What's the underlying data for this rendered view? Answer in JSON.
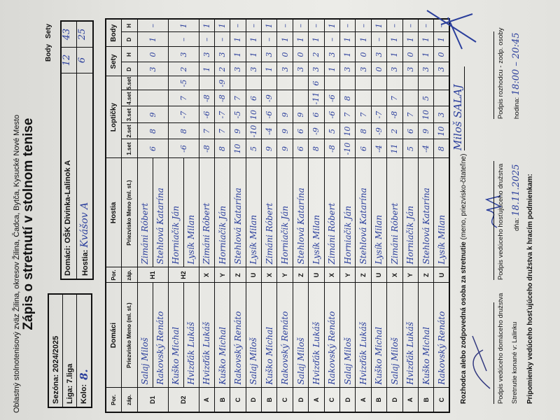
{
  "header": {
    "federation": "Oblastný  stolnotenisový zväz  Žilina, okresov Žilina, Čadca, Bytča, Kysucké Nové Mesto",
    "title": "Zápis o stretnutí v stolnom tenise",
    "season_label": "Sezóna: 2024/2025",
    "league_label": "Liga: 7.liga",
    "round_label": "Kolo:",
    "round_value": "8.",
    "home_label": "Domáci: OŠK Divinka-Lalinok A",
    "guest_label": "Hostia:",
    "guest_value": "Kvášov A"
  },
  "totals": {
    "body_label": "Body",
    "sety_label": "Sety",
    "home_body": "12",
    "home_sety": "43",
    "guest_body": "6",
    "guest_sety": "25"
  },
  "table_head": {
    "por": "Por.",
    "zap": "záp.",
    "home": "Domáci",
    "guest": "Hostia",
    "name_col": "Priezvisko Meno  (ml. st.)",
    "balls": "Loptičky",
    "sets_cols": [
      "1.set",
      "2.set",
      "3.set",
      "4.set",
      "5.set"
    ],
    "sety": "Sety",
    "body": "Body",
    "d": "D",
    "h": "H"
  },
  "doubles": [
    {
      "home_pos": "D1",
      "home": [
        "Salaj Miloš",
        "Rakovský Renáto"
      ],
      "guest_pos": "H1",
      "guest": [
        "Zimáni Róbert",
        "Stehlová Katarína"
      ],
      "sets": [
        "6",
        "8",
        "9",
        "",
        ""
      ],
      "sety": [
        "3",
        "0"
      ],
      "body": [
        "1",
        "–"
      ]
    },
    {
      "home_pos": "D2",
      "home": [
        "Kuško Michal",
        "Hvizďák Lukáš"
      ],
      "guest_pos": "H2",
      "guest": [
        "Horniačik Ján",
        "Lysík Milan"
      ],
      "sets": [
        "-6",
        "8",
        "-7",
        "7",
        "-5"
      ],
      "sety": [
        "2",
        "3"
      ],
      "body": [
        "–",
        "1"
      ]
    }
  ],
  "singles": [
    {
      "home_pos": "A",
      "home": "Hvizďák Lukáš",
      "guest_pos": "X",
      "guest": "Zimáni Róbert",
      "sets": [
        "-8",
        "7",
        "-6",
        "-8",
        ""
      ],
      "sety": [
        "1",
        "3"
      ],
      "body": [
        "–",
        "1"
      ]
    },
    {
      "home_pos": "B",
      "home": "Kuško Michal",
      "guest_pos": "Y",
      "guest": "Horniačik Ján",
      "sets": [
        "8",
        "7",
        "-7",
        "-8",
        "-9"
      ],
      "sety": [
        "2",
        "3"
      ],
      "body": [
        "–",
        "1"
      ]
    },
    {
      "home_pos": "C",
      "home": "Rakovský Renáto",
      "guest_pos": "Z",
      "guest": "Stehlová Katarína",
      "sets": [
        "10",
        "9",
        "-5",
        "7",
        ""
      ],
      "sety": [
        "3",
        "1"
      ],
      "body": [
        "1",
        "–"
      ]
    },
    {
      "home_pos": "D",
      "home": "Salaj Miloš",
      "guest_pos": "U",
      "guest": "Lysík Milan",
      "sets": [
        "5",
        "-10",
        "10",
        "6",
        ""
      ],
      "sety": [
        "3",
        "1"
      ],
      "body": [
        "1",
        "–"
      ]
    },
    {
      "home_pos": "B",
      "home": "Kuško Michal",
      "guest_pos": "X",
      "guest": "Zimáni Róbert",
      "sets": [
        "9",
        "-4",
        "-6",
        "-9",
        ""
      ],
      "sety": [
        "1",
        "3"
      ],
      "body": [
        "–",
        "1"
      ]
    },
    {
      "home_pos": "C",
      "home": "Rakovský Renáto",
      "guest_pos": "Y",
      "guest": "Horniačik Ján",
      "sets": [
        "9",
        "9",
        "9",
        "",
        ""
      ],
      "sety": [
        "3",
        "0"
      ],
      "body": [
        "1",
        "–"
      ]
    },
    {
      "home_pos": "D",
      "home": "Salaj Miloš",
      "guest_pos": "Z",
      "guest": "Stehlová Katarína",
      "sets": [
        "6",
        "6",
        "9",
        "",
        ""
      ],
      "sety": [
        "3",
        "0"
      ],
      "body": [
        "1",
        "–"
      ]
    },
    {
      "home_pos": "A",
      "home": "Hvizďák Lukáš",
      "guest_pos": "U",
      "guest": "Lysík Milan",
      "sets": [
        "8",
        "-9",
        "6",
        "-11",
        "6"
      ],
      "sety": [
        "3",
        "2"
      ],
      "body": [
        "1",
        "–"
      ]
    },
    {
      "home_pos": "C",
      "home": "Rakovský Renáto",
      "guest_pos": "X",
      "guest": "Zimáni Róbert",
      "sets": [
        "-8",
        "5",
        "-6",
        "-6",
        ""
      ],
      "sety": [
        "1",
        "3"
      ],
      "body": [
        "–",
        "1"
      ]
    },
    {
      "home_pos": "D",
      "home": "Salaj Miloš",
      "guest_pos": "Y",
      "guest": "Horniačik Ján",
      "sets": [
        "-10",
        "10",
        "7",
        "8",
        ""
      ],
      "sety": [
        "3",
        "1"
      ],
      "body": [
        "1",
        "–"
      ]
    },
    {
      "home_pos": "A",
      "home": "Hvizďák Lukáš",
      "guest_pos": "Z",
      "guest": "Stehlová Katarína",
      "sets": [
        "6",
        "8",
        "7",
        "",
        ""
      ],
      "sety": [
        "3",
        "0"
      ],
      "body": [
        "1",
        "–"
      ]
    },
    {
      "home_pos": "B",
      "home": "Kuško Michal",
      "guest_pos": "U",
      "guest": "Lysík Milan",
      "sets": [
        "-4",
        "-9",
        "-7",
        "",
        ""
      ],
      "sety": [
        "0",
        "3"
      ],
      "body": [
        "–",
        "1"
      ]
    },
    {
      "home_pos": "D",
      "home": "Salaj Miloš",
      "guest_pos": "X",
      "guest": "Zimáni Róbert",
      "sets": [
        "11",
        "2",
        "-8",
        "7",
        ""
      ],
      "sety": [
        "3",
        "1"
      ],
      "body": [
        "1",
        "–"
      ]
    },
    {
      "home_pos": "A",
      "home": "Hvizďák Lukáš",
      "guest_pos": "Y",
      "guest": "Horniačik Ján",
      "sets": [
        "5",
        "6",
        "7",
        "",
        ""
      ],
      "sety": [
        "3",
        "0"
      ],
      "body": [
        "1",
        "–"
      ]
    },
    {
      "home_pos": "B",
      "home": "Kuško Michal",
      "guest_pos": "Z",
      "guest": "Stehlová Katarína",
      "sets": [
        "-4",
        "9",
        "10",
        "5",
        ""
      ],
      "sety": [
        "3",
        "1"
      ],
      "body": [
        "1",
        "–"
      ]
    },
    {
      "home_pos": "C",
      "home": "Rakovský Renáto",
      "guest_pos": "U",
      "guest": "Lysík Milan",
      "sets": [
        "8",
        "10",
        "3",
        "",
        ""
      ],
      "sety": [
        "3",
        "0"
      ],
      "body": [
        "1",
        "–"
      ]
    }
  ],
  "footer": {
    "referee_label": "Rozhodca alebo zodpovedná osoba za stretnutie",
    "referee_hint": "(meno, priezvisko-čitateľne)",
    "referee_name": "Miloš SALAJ",
    "home_sign_label": "Podpis vedúceho domáceho družstva",
    "guest_sign_label": "Podpis vedúceho hosťujúceho družstva",
    "referee_sign_label": "Podpis rozhodcu - zodp. osoby",
    "venue_label": "Stretnutie konané v: Lalinku",
    "date_label": "dňa:",
    "date_value": "18.11.2025",
    "time_label": "hodina:",
    "time_value": "18:00 – 20:45",
    "remarks_label": "Pripomienky vedúceho hosťujúceho družstva k hracím podmienkam:"
  },
  "colors": {
    "ink": "#2b3f9c",
    "paper": "#e7e7e3",
    "print": "#111111"
  }
}
